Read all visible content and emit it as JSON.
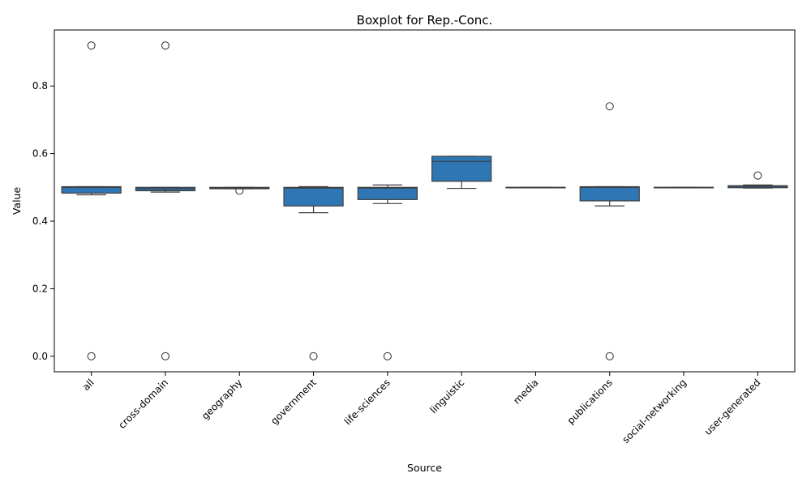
{
  "chart_data": {
    "type": "boxplot",
    "title": "Boxplot for Rep.-Conc.",
    "xlabel": "Source",
    "ylabel": "Value",
    "ylim": [
      -0.046,
      0.966
    ],
    "yticks": [
      0.0,
      0.2,
      0.4,
      0.6,
      0.8
    ],
    "ytick_labels": [
      "0.0",
      "0.2",
      "0.4",
      "0.6",
      "0.8"
    ],
    "grid": false,
    "color": "#2f77b4",
    "categories": [
      "all",
      "cross-domain",
      "geography",
      "government",
      "life-sciences",
      "linguistic",
      "media",
      "publications",
      "social-networking",
      "user-generated"
    ],
    "boxes": [
      {
        "whisker_low": 0.478,
        "q1": 0.483,
        "median": 0.5,
        "q3": 0.502,
        "whisker_high": 0.502,
        "outliers": [
          0.92,
          0.0
        ]
      },
      {
        "whisker_low": 0.486,
        "q1": 0.49,
        "median": 0.496,
        "q3": 0.5,
        "whisker_high": 0.5,
        "outliers": [
          0.92,
          0.0
        ]
      },
      {
        "whisker_low": 0.496,
        "q1": 0.496,
        "median": 0.498,
        "q3": 0.5,
        "whisker_high": 0.5,
        "outliers": [
          0.49
        ]
      },
      {
        "whisker_low": 0.425,
        "q1": 0.445,
        "median": 0.498,
        "q3": 0.5,
        "whisker_high": 0.502,
        "outliers": [
          0.0
        ]
      },
      {
        "whisker_low": 0.452,
        "q1": 0.464,
        "median": 0.498,
        "q3": 0.5,
        "whisker_high": 0.507,
        "outliers": [
          0.0
        ]
      },
      {
        "whisker_low": 0.497,
        "q1": 0.518,
        "median": 0.577,
        "q3": 0.592,
        "whisker_high": 0.592,
        "outliers": []
      },
      {
        "whisker_low": 0.5,
        "q1": 0.5,
        "median": 0.5,
        "q3": 0.5,
        "whisker_high": 0.5,
        "outliers": []
      },
      {
        "whisker_low": 0.445,
        "q1": 0.46,
        "median": 0.5,
        "q3": 0.502,
        "whisker_high": 0.502,
        "outliers": [
          0.74,
          0.0
        ]
      },
      {
        "whisker_low": 0.5,
        "q1": 0.5,
        "median": 0.5,
        "q3": 0.5,
        "whisker_high": 0.5,
        "outliers": []
      },
      {
        "whisker_low": 0.498,
        "q1": 0.499,
        "median": 0.503,
        "q3": 0.505,
        "whisker_high": 0.507,
        "outliers": [
          0.535
        ]
      }
    ]
  }
}
